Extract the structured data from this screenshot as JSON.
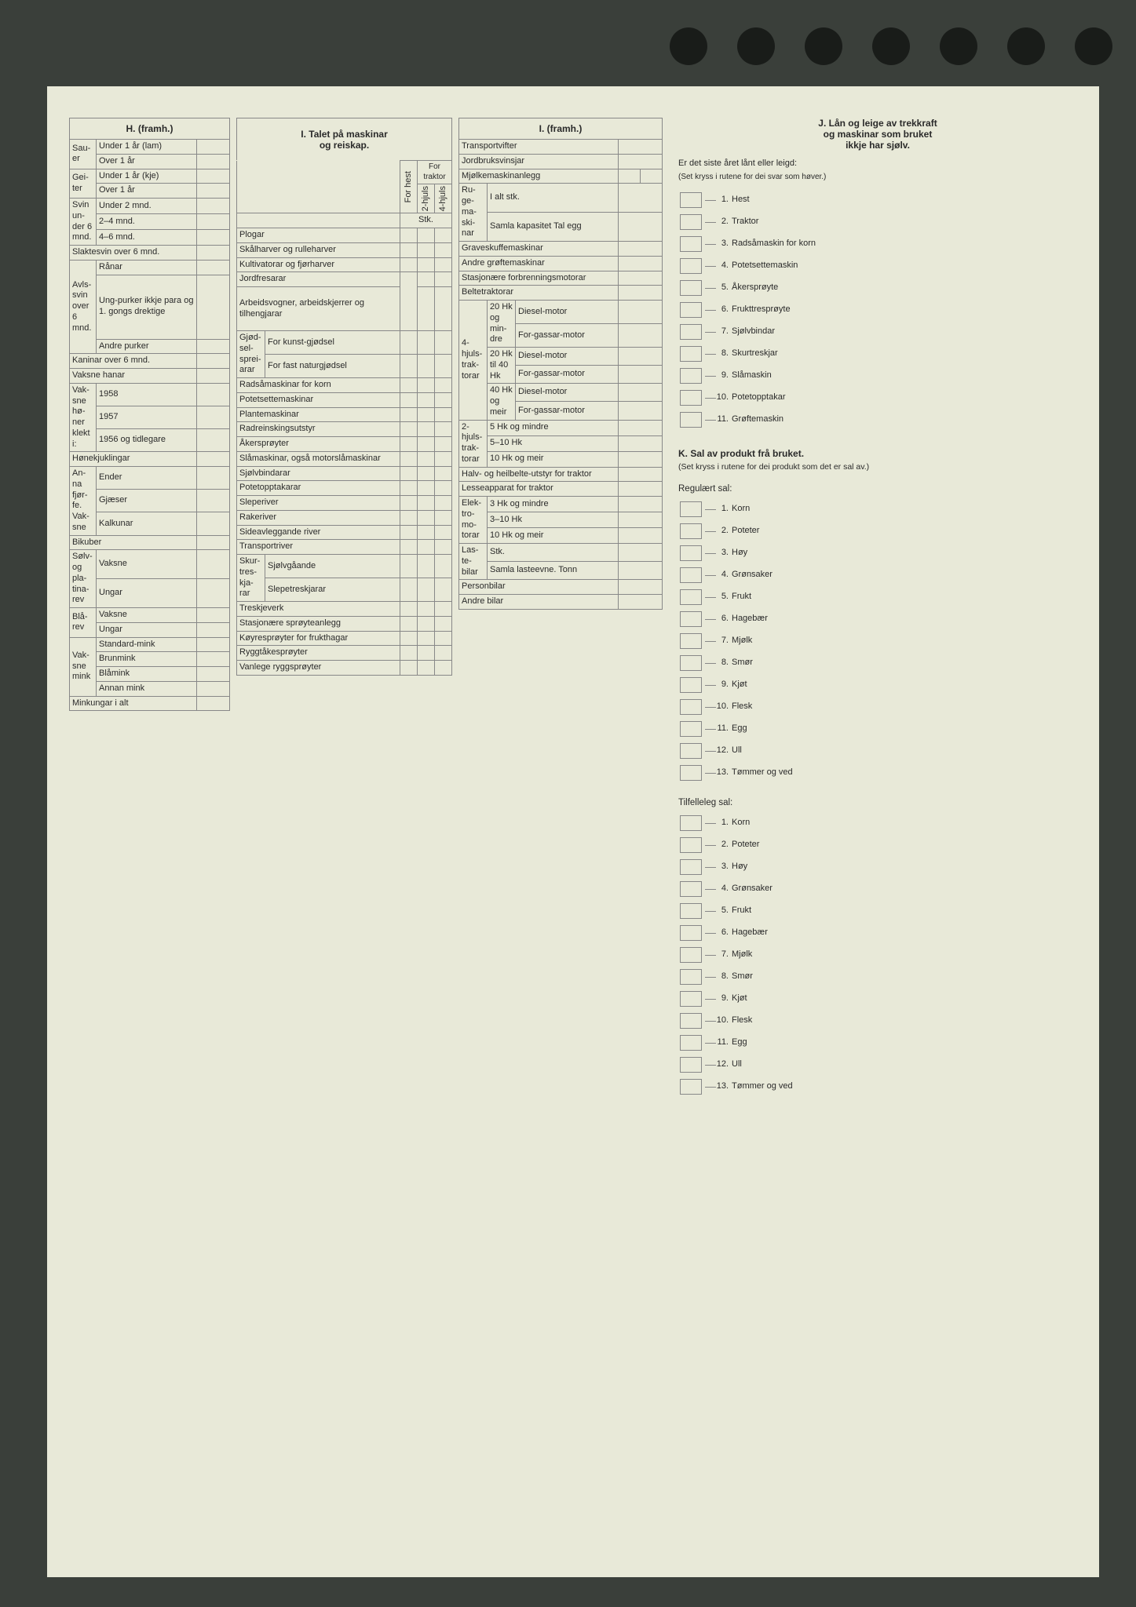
{
  "headers": {
    "h": "H. (framh.)",
    "i1_l1": "I. Talet på maskinar",
    "i1_l2": "og reiskap.",
    "i2": "I. (framh.)",
    "j_l1": "J. Lån og leige av trekkraft",
    "j_l2": "og maskinar som bruket",
    "j_l3": "ikkje har sjølv."
  },
  "h": {
    "sauer": "Sau-er",
    "u1lam": "Under 1 år (lam)",
    "o1": "Over 1 år",
    "geiter": "Gei-ter",
    "u1kje": "Under 1 år (kje)",
    "svin": "Svin un-der 6 mnd.",
    "u2m": "Under 2 mnd.",
    "m24": "2–4 mnd.",
    "m46": "4–6 mnd.",
    "slakt": "Slaktesvin over 6 mnd.",
    "avls": "Avls-svin over 6 mnd.",
    "ranar": "Rånar",
    "ungp": "Ung-purker ikkje para og 1. gongs drektige",
    "andrep": "Andre purker",
    "kanin": "Kaninar over 6 mnd.",
    "vhanar": "Vaksne hanar",
    "vhoner": "Vak-sne hø-ner klekt i:",
    "y1958": "1958",
    "y1957": "1957",
    "y1956": "1956 og tidlegare",
    "honek": "Hønekjuklingar",
    "anna": "An-na fjør-fe. Vak-sne",
    "ender": "Ender",
    "gjaeser": "Gjæser",
    "kalkunar": "Kalkunar",
    "bikuber": "Bikuber",
    "solv": "Sølv- og pla-tina-rev",
    "vaksne": "Vaksne",
    "ungar": "Ungar",
    "blarev": "Blå-rev",
    "mink": "Vak-sne mink",
    "stdmink": "Standard-mink",
    "brunmink": "Brunmink",
    "blamink": "Blåmink",
    "annanmink": "Annan mink",
    "minkungar": "Minkungar i alt"
  },
  "i1": {
    "forhest": "For hest",
    "h2": "2-hjuls",
    "h4": "4-hjuls",
    "fortraktor": "For traktor",
    "stk": "Stk.",
    "plogar": "Plogar",
    "skalharver": "Skålharver og rulleharver",
    "kultiv": "Kultivatorar og fjørharver",
    "jordfres": "Jordfresarar",
    "arbeidsv": "Arbeidsvogner, arbeidskjerrer og tilhengjarar",
    "gjodsel": "Gjød-sel-sprei-arar",
    "kunst": "For kunst-gjødsel",
    "fast": "For fast naturgjødsel",
    "radsa": "Radsåmaskinar for korn",
    "potets": "Potetsettemaskinar",
    "plante": "Plantemaskinar",
    "radrein": "Radreinskingsutstyr",
    "akersp": "Åkersprøyter",
    "slamask": "Slåmaskinar, også motorslåmaskinar",
    "sjolvbind": "Sjølvbindarar",
    "potetopp": "Potetopptakarar",
    "sleper": "Sleperiver",
    "raker": "Rakeriver",
    "sideavl": "Sideavleggande river",
    "transpr": "Transportriver",
    "skurt": "Skur-tres-kja-rar",
    "sjolvg": "Sjølvgåande",
    "slepet": "Slepetreskjarar",
    "treskje": "Treskjeverk",
    "stasjonsp": "Stasjonære sprøyteanlegg",
    "koyresp": "Køyresprøyter for frukthagar",
    "ryggtake": "Ryggtåkesprøyter",
    "vanlege": "Vanlege ryggsprøyter"
  },
  "i2": {
    "transportv": "Transportvifter",
    "jordbruksv": "Jordbruksvinsjar",
    "mjolkem": "Mjølkemaskinanlegg",
    "rugem": "Ru-ge-ma-ski-nar",
    "ialtstk": "I alt stk.",
    "samla": "Samla kapasitet Tal egg",
    "graveskuffe": "Graveskuffemaskinar",
    "andregrofte": "Andre grøftemaskinar",
    "stasjonforbr": "Stasjonære forbrenningsmotorar",
    "beltetrakt": "Beltetraktorar",
    "h4trakt": "4-hjuls-trak-torar",
    "hk20m": "20 Hk og min-dre",
    "hk2040": "20 Hk til 40 Hk",
    "hk40m": "40 Hk og meir",
    "diesel": "Diesel-motor",
    "forgass": "For-gassar-motor",
    "h2trakt": "2-hjuls-trak-torar",
    "hk5m": "5 Hk og mindre",
    "hk510": "5–10 Hk",
    "hk10m": "10 Hk og meir",
    "halvheil": "Halv- og heilbelte-utstyr for traktor",
    "lesseapp": "Lesseapparat for traktor",
    "elektro": "Elek-tro-mo-torar",
    "hk3m": "3 Hk og mindre",
    "hk310": "3–10 Hk",
    "laste": "Las-te-bilar",
    "lastestk": "Stk.",
    "samlalast": "Samla lasteevne. Tonn",
    "personbil": "Personbilar",
    "andrebil": "Andre bilar"
  },
  "j": {
    "intro": "Er det siste året lånt eller leigd:",
    "note": "(Set kryss i rutene for dei svar som høver.)",
    "items": [
      "Hest",
      "Traktor",
      "Radsåmaskin for korn",
      "Potetsettemaskin",
      "Åkersprøyte",
      "Frukttresprøyte",
      "Sjølvbindar",
      "Skurtreskjar",
      "Slåmaskin",
      "Potetopptakar",
      "Grøftemaskin"
    ]
  },
  "k": {
    "header": "K. Sal av produkt frå bruket.",
    "note": "(Set kryss i rutene for dei produkt som det er sal av.)",
    "reg": "Regulært sal:",
    "tilf": "Tilfelleleg sal:",
    "items": [
      "Korn",
      "Poteter",
      "Høy",
      "Grønsaker",
      "Frukt",
      "Hagebær",
      "Mjølk",
      "Smør",
      "Kjøt",
      "Flesk",
      "Egg",
      "Ull",
      "Tømmer og ved"
    ]
  }
}
